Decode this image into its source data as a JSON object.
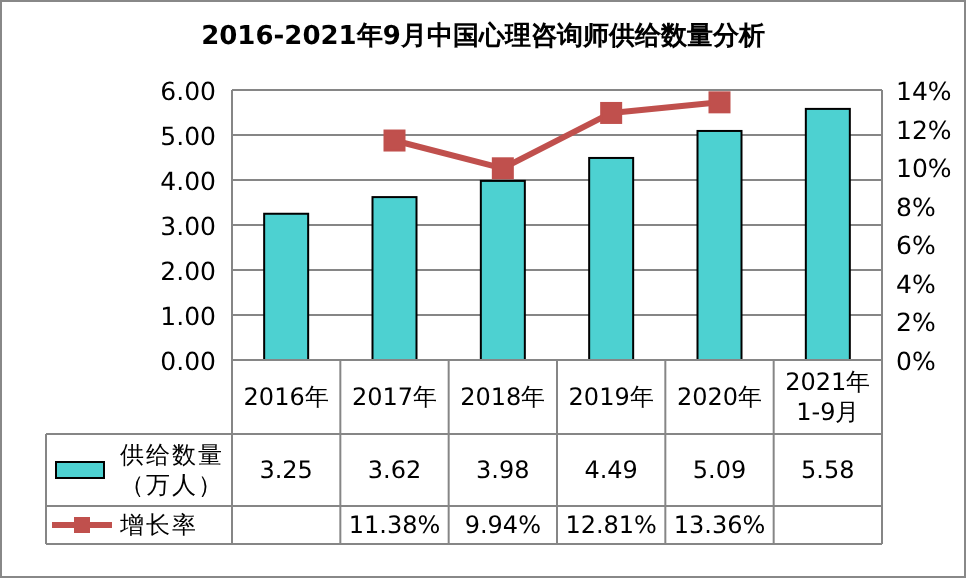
{
  "chart_data": {
    "type": "bar",
    "title": "2016-2021年9月中国心理咨询师供给数量分析",
    "categories": [
      "2016年",
      "2017年",
      "2018年",
      "2019年",
      "2020年",
      "2021年1-9月"
    ],
    "series": [
      {
        "name": "供给数量（万人）",
        "color": "#4dd1d1",
        "values": [
          3.25,
          3.62,
          3.98,
          4.49,
          5.09,
          5.58
        ],
        "value_labels": [
          "3.25",
          "3.62",
          "3.98",
          "4.49",
          "5.09",
          "5.58"
        ]
      },
      {
        "name": "增长率",
        "type": "line",
        "axis": "y2",
        "color": "#c0504d",
        "marker": "square",
        "values": [
          null,
          11.38,
          9.94,
          12.81,
          13.36,
          null
        ],
        "value_labels": [
          null,
          "11.38%",
          "9.94%",
          "12.81%",
          "13.36%",
          null
        ]
      }
    ],
    "ylim": [
      0,
      6
    ],
    "yticks": [
      {
        "value": 0,
        "label": "0.00"
      },
      {
        "value": 1,
        "label": "1.00"
      },
      {
        "value": 2,
        "label": "2.00"
      },
      {
        "value": 3,
        "label": "3.00"
      },
      {
        "value": 4,
        "label": "4.00"
      },
      {
        "value": 5,
        "label": "5.00"
      },
      {
        "value": 6,
        "label": "6.00"
      }
    ],
    "y2lim": [
      0,
      14
    ],
    "y2ticks": [
      {
        "value": 0,
        "label": "0%"
      },
      {
        "value": 2,
        "label": "2%"
      },
      {
        "value": 4,
        "label": "4%"
      },
      {
        "value": 6,
        "label": "6%"
      },
      {
        "value": 8,
        "label": "8%"
      },
      {
        "value": 10,
        "label": "10%"
      },
      {
        "value": 12,
        "label": "12%"
      },
      {
        "value": 14,
        "label": "14%"
      }
    ],
    "grid": "y",
    "legend": "bottom"
  }
}
